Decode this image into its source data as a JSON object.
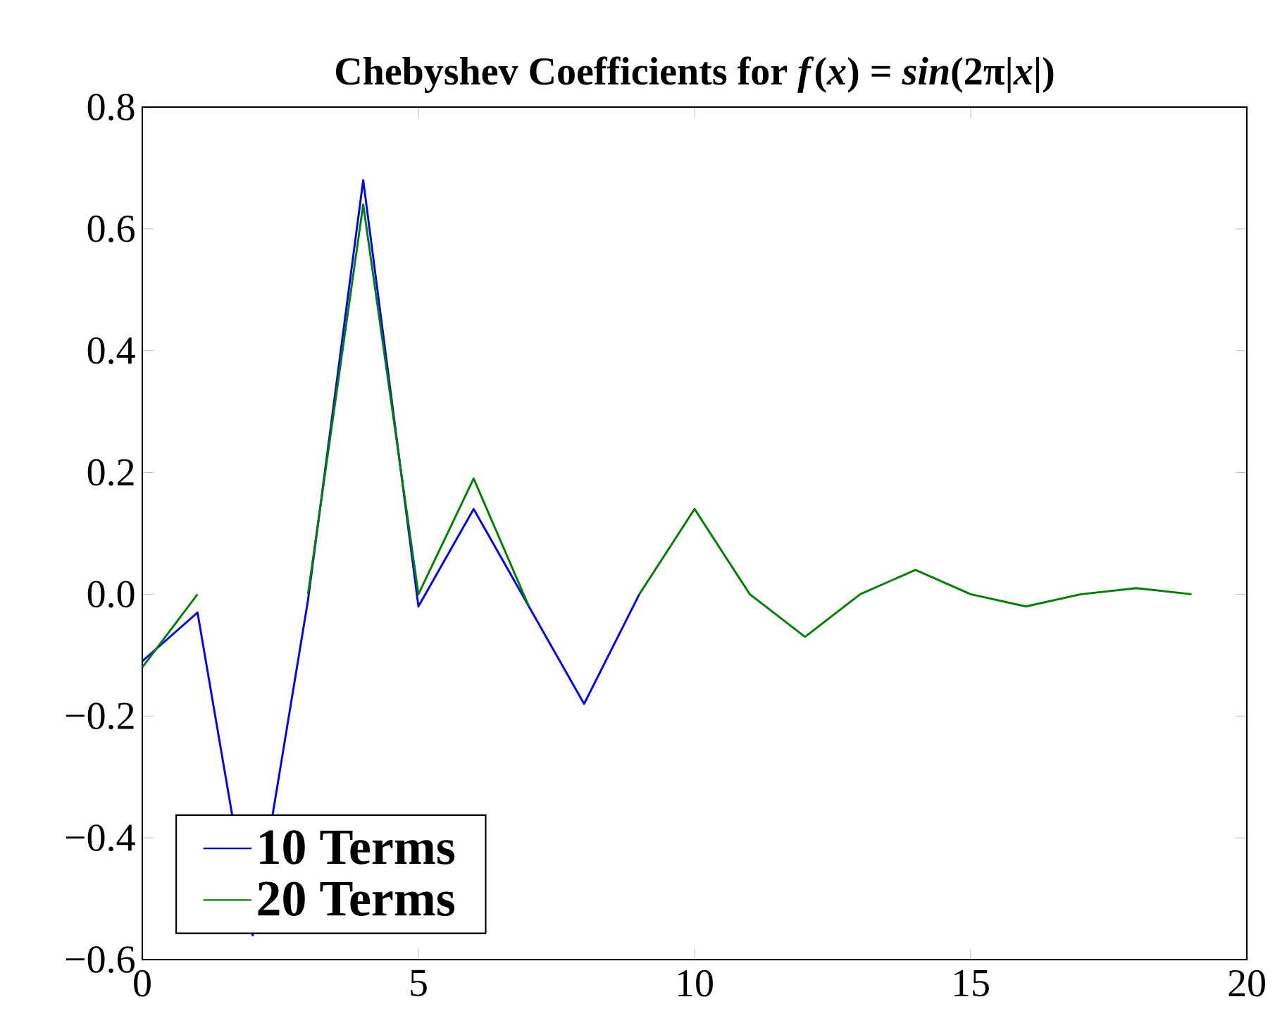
{
  "chart_data": {
    "type": "line",
    "title": "Chebyshev Coefficients for *f*(*x*) = *sin*(2π|*x*|)",
    "x": [
      0,
      1,
      2,
      3,
      4,
      5,
      6,
      7,
      8,
      9,
      10,
      11,
      12,
      13,
      14,
      15,
      16,
      17,
      18,
      19
    ],
    "series": [
      {
        "name": "10 Terms",
        "color": "#0000ff",
        "x": [
          0,
          1,
          2,
          3,
          4,
          5,
          6,
          7,
          8,
          9
        ],
        "values": [
          -0.11,
          -0.03,
          -0.56,
          -0.01,
          0.68,
          -0.02,
          0.14,
          -0.02,
          -0.18,
          0.0
        ]
      },
      {
        "name": "20 Terms",
        "color": "#008000",
        "values": [
          -0.12,
          0.0,
          null,
          0.0,
          0.64,
          0.0,
          0.19,
          -0.02,
          null,
          0.0,
          0.14,
          0.0,
          -0.07,
          0.0,
          0.04,
          0.0,
          -0.02,
          0.0,
          0.01,
          0.0
        ]
      }
    ],
    "xlim": [
      0,
      20
    ],
    "xticks": [
      0,
      5,
      10,
      15,
      20
    ],
    "ylim": [
      -0.6,
      0.8
    ],
    "yticks": [
      {
        "value": -0.6,
        "label": "−0.6"
      },
      {
        "value": -0.4,
        "label": "−0.4"
      },
      {
        "value": -0.2,
        "label": "−0.2"
      },
      {
        "value": 0,
        "label": "0.0"
      },
      {
        "value": 0.2,
        "label": "0.2"
      },
      {
        "value": 0.4,
        "label": "0.4"
      },
      {
        "value": 0.6,
        "label": "0.6"
      },
      {
        "value": 0.8,
        "label": "0.8"
      }
    ],
    "legend": "bottom left",
    "grid": false,
    "marker": "none",
    "line_style": "solid"
  }
}
